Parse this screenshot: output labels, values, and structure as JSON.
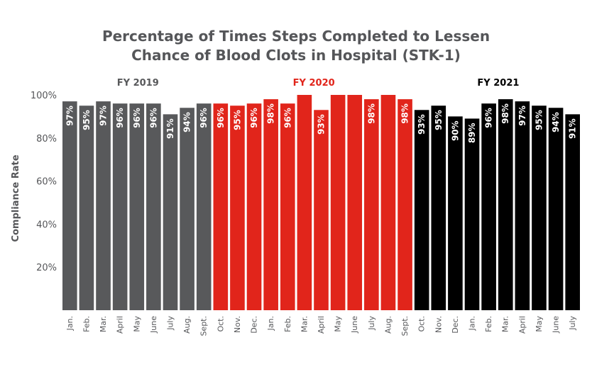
{
  "title_line1": "Percentage of Times Steps Completed to Lessen",
  "title_line2": "Chance of Blood Clots in Hospital (STK-1)",
  "chart_data": {
    "type": "bar",
    "title": "Percentage of Times Steps Completed to Lessen Chance of Blood Clots in Hospital (STK-1)",
    "ylabel": "Compliance Rate",
    "xlabel": "",
    "ylim": [
      0,
      100
    ],
    "yticks": [
      "20%",
      "40%",
      "60%",
      "80%",
      "100%"
    ],
    "yticks_values": [
      20,
      40,
      60,
      80,
      100
    ],
    "grid": false,
    "legend": "none",
    "groups": [
      {
        "label": "FY 2019",
        "color": "#58595b",
        "label_color": "#58595b",
        "categories": [
          "Jan.",
          "Feb.",
          "Mar.",
          "April",
          "May",
          "June",
          "July",
          "Aug.",
          "Sept."
        ],
        "values": [
          97,
          95,
          97,
          96,
          96,
          96,
          91,
          94,
          96
        ],
        "labels": [
          "97%",
          "95%",
          "97%",
          "96%",
          "96%",
          "96%",
          "91%",
          "94%",
          "96%"
        ]
      },
      {
        "label": "FY 2020",
        "color": "#e1251b",
        "label_color": "#e1251b",
        "categories": [
          "Oct.",
          "Nov.",
          "Dec.",
          "Jan.",
          "Feb.",
          "Mar.",
          "April",
          "May",
          "June",
          "July",
          "Aug.",
          "Sept."
        ],
        "values": [
          96,
          95,
          96,
          98,
          96,
          100,
          93,
          100,
          100,
          98,
          100,
          98
        ],
        "labels": [
          "96%",
          "95%",
          "96%",
          "98%",
          "96%",
          "",
          "93%",
          "",
          "",
          "98%",
          "",
          "98%"
        ]
      },
      {
        "label": "FY 2021",
        "color": "#000000",
        "label_color": "#000000",
        "categories": [
          "Oct.",
          "Nov.",
          "Dec.",
          "Jan.",
          "Feb.",
          "Mar.",
          "April",
          "May",
          "June",
          "July"
        ],
        "values": [
          93,
          95,
          90,
          89,
          96,
          98,
          97,
          95,
          94,
          91
        ],
        "labels": [
          "93%",
          "95%",
          "90%",
          "89%",
          "96%",
          "98%",
          "97%",
          "95%",
          "94%",
          "91%"
        ]
      }
    ]
  }
}
